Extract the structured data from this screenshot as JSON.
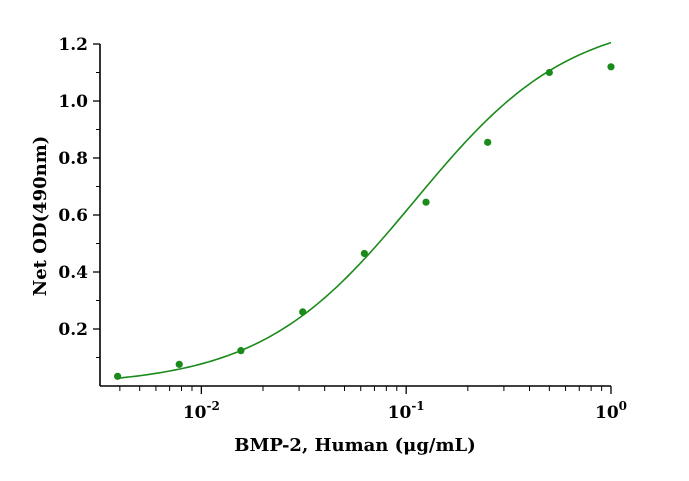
{
  "chart_data": {
    "type": "scatter",
    "xlabel": "BMP-2, Human (μg/mL)",
    "ylabel": "Net OD(490nm)",
    "x_scale": "log",
    "xlim": [
      0.0032,
      1.0
    ],
    "ylim": [
      0.0,
      1.2
    ],
    "x_ticks": [
      {
        "value": 0.01,
        "base": "10",
        "exp": "-2"
      },
      {
        "value": 0.1,
        "base": "10",
        "exp": "-1"
      },
      {
        "value": 1,
        "base": "10",
        "exp": "0"
      }
    ],
    "y_ticks": [
      {
        "value": 0.2,
        "label": "0.2"
      },
      {
        "value": 0.4,
        "label": "0.4"
      },
      {
        "value": 0.6,
        "label": "0.6"
      },
      {
        "value": 0.8,
        "label": "0.8"
      },
      {
        "value": 1.0,
        "label": "1.0"
      },
      {
        "value": 1.2,
        "label": "1.2"
      }
    ],
    "grid": false,
    "color": "#1a8a1a",
    "points": [
      {
        "x": 0.0039,
        "y": 0.034
      },
      {
        "x": 0.0078,
        "y": 0.076
      },
      {
        "x": 0.0156,
        "y": 0.124
      },
      {
        "x": 0.03125,
        "y": 0.26
      },
      {
        "x": 0.0625,
        "y": 0.465
      },
      {
        "x": 0.125,
        "y": 0.645
      },
      {
        "x": 0.25,
        "y": 0.855
      },
      {
        "x": 0.5,
        "y": 1.1
      },
      {
        "x": 1.0,
        "y": 1.12
      }
    ],
    "fit": {
      "bottom": 0.0,
      "top": 1.3,
      "ec50": 0.11,
      "hill": 1.15
    }
  }
}
